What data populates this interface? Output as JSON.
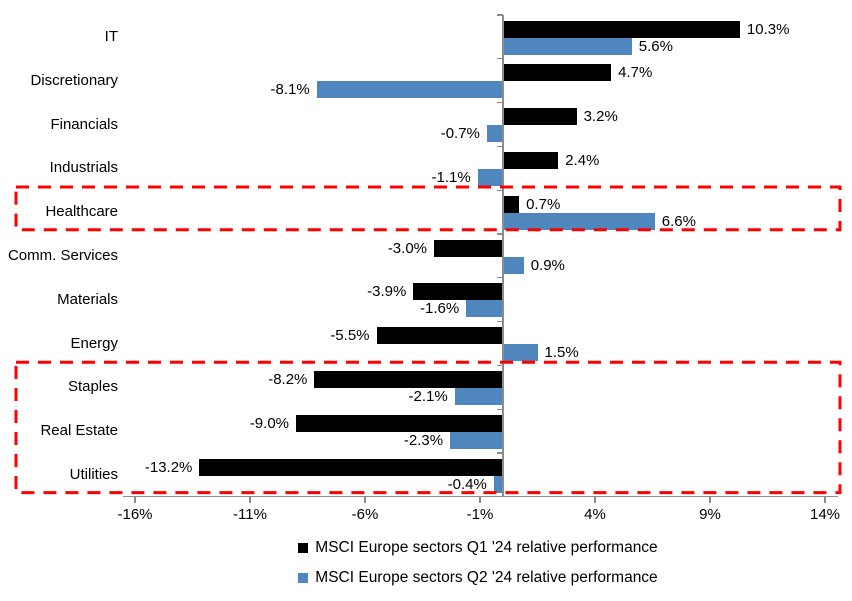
{
  "colors": {
    "background": "#ffffff",
    "q1_bar": "#000000",
    "q2_bar": "#4e86bd",
    "axis": "#8c8c8c",
    "highlight_red": "#ff0000",
    "text": "#000000"
  },
  "chart_data": {
    "type": "bar",
    "orientation": "horizontal",
    "title": "",
    "xlabel": "",
    "ylabel": "",
    "grid": false,
    "legend_position": "bottom",
    "categories": [
      "IT",
      "Discretionary",
      "Financials",
      "Industrials",
      "Healthcare",
      "Comm. Services",
      "Materials",
      "Energy",
      "Staples",
      "Real Estate",
      "Utilities"
    ],
    "series": [
      {
        "name": "MSCI Europe sectors Q1 '24 relative performance",
        "color": "#000000",
        "values": [
          10.3,
          4.7,
          3.2,
          2.4,
          0.7,
          -3.0,
          -3.9,
          -5.5,
          -8.2,
          -9.0,
          -13.2
        ],
        "labels": [
          "10.3%",
          "4.7%",
          "3.2%",
          "2.4%",
          "0.7%",
          "-3.0%",
          "-3.9%",
          "-5.5%",
          "-8.2%",
          "-9.0%",
          "-13.2%"
        ]
      },
      {
        "name": "MSCI Europe sectors Q2 '24 relative performance",
        "color": "#4e86bd",
        "values": [
          5.6,
          -8.1,
          -0.7,
          -1.1,
          6.6,
          0.9,
          -1.6,
          1.5,
          -2.1,
          -2.3,
          -0.4
        ],
        "labels": [
          "5.6%",
          "-8.1%",
          "-0.7%",
          "-1.1%",
          "6.6%",
          "0.9%",
          "-1.6%",
          "1.5%",
          "-2.1%",
          "-2.3%",
          "-0.4%"
        ]
      }
    ],
    "x_axis": {
      "ticks": [
        "-16%",
        "-11%",
        "-6%",
        "-1%",
        "4%",
        "9%",
        "14%"
      ],
      "tick_values": [
        -16,
        -11,
        -6,
        -1,
        4,
        9,
        14
      ],
      "min": -16.5,
      "max": 14.5
    },
    "highlights": [
      {
        "name": "healthcare-highlight-box",
        "categories": [
          "Healthcare"
        ],
        "start_index": 4,
        "row_count": 1,
        "color": "#ff0000"
      },
      {
        "name": "defensives-highlight-box",
        "categories": [
          "Staples",
          "Real Estate",
          "Utilities"
        ],
        "start_index": 8,
        "row_count": 3,
        "color": "#ff0000"
      }
    ]
  }
}
